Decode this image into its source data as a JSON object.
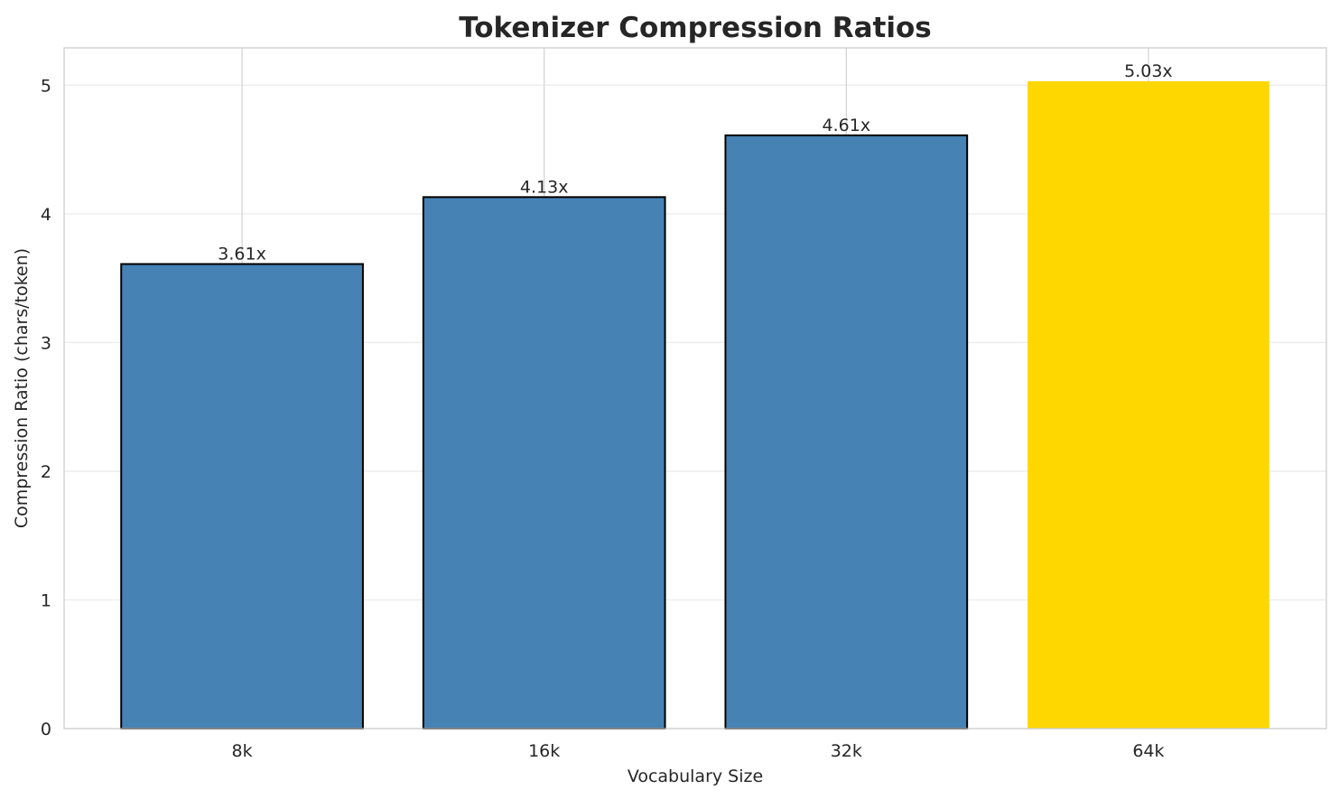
{
  "chart_data": {
    "type": "bar",
    "title": "Tokenizer Compression Ratios",
    "xlabel": "Vocabulary Size",
    "ylabel": "Compression Ratio (chars/token)",
    "categories": [
      "8k",
      "16k",
      "32k",
      "64k"
    ],
    "values": [
      3.61,
      4.13,
      4.61,
      5.03
    ],
    "data_labels": [
      "3.61x",
      "4.13x",
      "4.61x",
      "5.03x"
    ],
    "bar_colors": [
      "#4682b4",
      "#4682b4",
      "#4682b4",
      "#ffd700"
    ],
    "bar_edges": [
      true,
      true,
      true,
      false
    ],
    "ylim": [
      0,
      5.29
    ],
    "yticks": [
      0,
      1,
      2,
      3,
      4,
      5
    ],
    "ytick_labels": [
      "0",
      "1",
      "2",
      "3",
      "4",
      "5"
    ],
    "grid": true,
    "legend": "none"
  }
}
